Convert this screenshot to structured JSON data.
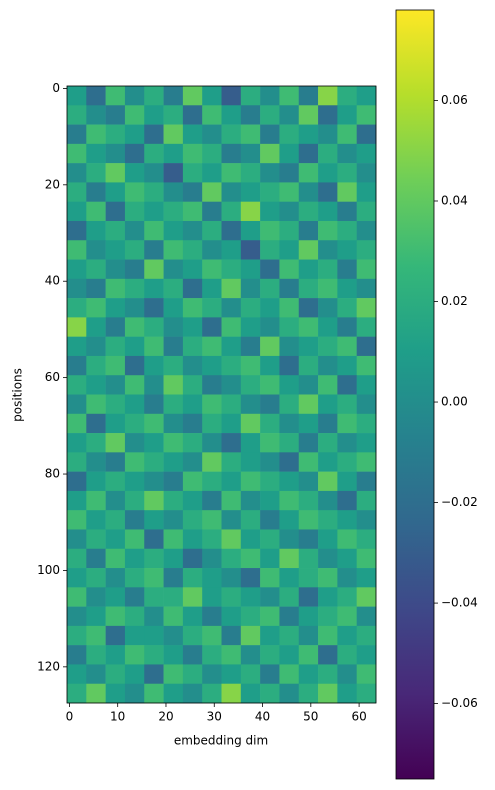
{
  "chart_data": {
    "type": "heatmap",
    "colormap": "viridis",
    "xlabel": "embedding dim",
    "ylabel": "positions",
    "xlim": [
      -0.5,
      63.5
    ],
    "ylim": [
      127.5,
      -0.5
    ],
    "xticks": [
      0,
      10,
      20,
      30,
      40,
      50,
      60
    ],
    "yticks": [
      0,
      20,
      40,
      60,
      80,
      100,
      120
    ],
    "clim": [
      -0.075,
      0.078
    ],
    "cticks": [
      {
        "value": -0.06,
        "label": "−0.06"
      },
      {
        "value": -0.04,
        "label": "−0.04"
      },
      {
        "value": -0.02,
        "label": "−0.02"
      },
      {
        "value": 0,
        "label": "0.00"
      },
      0.02,
      0.04,
      0.06
    ],
    "z": [
      [
        0.01,
        -0.02,
        0.03,
        0.0,
        0.02,
        -0.01,
        0.04,
        0.01,
        -0.03,
        0.02,
        0.0,
        0.03,
        -0.01,
        0.05,
        0.02,
        0.01
      ],
      [
        0.02,
        0.0,
        -0.01,
        0.03,
        0.01,
        0.02,
        -0.02,
        0.03,
        0.01,
        -0.01,
        0.02,
        0.0,
        0.04,
        -0.02,
        0.01,
        0.03
      ],
      [
        -0.01,
        0.03,
        0.02,
        0.01,
        -0.02,
        0.04,
        0.01,
        0.0,
        0.02,
        0.03,
        -0.01,
        0.02,
        0.01,
        0.0,
        0.03,
        -0.02
      ],
      [
        0.03,
        0.01,
        0.0,
        -0.02,
        0.02,
        0.01,
        0.03,
        0.02,
        -0.01,
        0.0,
        0.04,
        0.01,
        -0.02,
        0.02,
        0.0,
        0.01
      ],
      [
        0.0,
        0.02,
        0.04,
        0.01,
        0.0,
        -0.03,
        0.02,
        0.01,
        0.03,
        0.02,
        0.0,
        -0.01,
        0.03,
        0.01,
        0.02,
        0.0
      ],
      [
        0.02,
        -0.01,
        0.01,
        0.03,
        0.02,
        0.0,
        -0.01,
        0.04,
        0.0,
        0.01,
        0.02,
        0.03,
        0.0,
        -0.02,
        0.04,
        0.01
      ],
      [
        0.01,
        0.03,
        -0.02,
        0.02,
        0.01,
        0.02,
        0.03,
        -0.01,
        0.02,
        0.05,
        0.01,
        0.0,
        0.02,
        0.01,
        -0.01,
        0.02
      ],
      [
        -0.02,
        0.01,
        0.02,
        0.0,
        0.03,
        0.01,
        0.0,
        0.02,
        -0.02,
        0.01,
        0.03,
        0.02,
        -0.01,
        0.03,
        0.02,
        0.0
      ],
      [
        0.03,
        0.0,
        0.01,
        0.02,
        -0.01,
        0.03,
        0.02,
        0.0,
        0.01,
        -0.03,
        0.02,
        0.01,
        0.04,
        0.0,
        0.01,
        0.02
      ],
      [
        0.01,
        0.02,
        0.0,
        -0.01,
        0.04,
        0.0,
        0.01,
        0.03,
        0.02,
        0.01,
        -0.02,
        0.03,
        0.01,
        0.02,
        -0.01,
        0.03
      ],
      [
        0.0,
        -0.01,
        0.03,
        0.02,
        0.01,
        0.02,
        -0.02,
        0.01,
        0.04,
        0.0,
        0.02,
        -0.01,
        0.02,
        0.03,
        0.01,
        0.0
      ],
      [
        0.02,
        0.03,
        0.01,
        0.0,
        -0.02,
        0.01,
        0.03,
        0.02,
        0.0,
        0.02,
        0.01,
        0.03,
        -0.02,
        0.0,
        0.02,
        0.04
      ],
      [
        0.05,
        0.01,
        -0.01,
        0.03,
        0.02,
        0.0,
        0.01,
        -0.02,
        0.03,
        0.01,
        0.0,
        0.02,
        0.03,
        0.01,
        -0.01,
        0.02
      ],
      [
        0.01,
        0.0,
        0.02,
        0.01,
        0.03,
        -0.01,
        0.02,
        0.03,
        0.01,
        -0.01,
        0.04,
        0.0,
        0.01,
        0.02,
        0.03,
        -0.02
      ],
      [
        -0.01,
        0.02,
        0.03,
        -0.02,
        0.01,
        0.02,
        0.0,
        0.01,
        0.02,
        0.03,
        0.01,
        -0.02,
        0.02,
        0.0,
        0.01,
        0.03
      ],
      [
        0.02,
        0.01,
        0.0,
        0.03,
        0.0,
        0.04,
        0.02,
        -0.01,
        0.0,
        0.02,
        0.03,
        0.01,
        0.0,
        0.03,
        -0.02,
        0.01
      ],
      [
        0.0,
        0.03,
        0.02,
        0.01,
        -0.01,
        0.02,
        0.01,
        0.03,
        0.02,
        0.0,
        -0.01,
        0.02,
        0.04,
        0.01,
        0.02,
        0.0
      ],
      [
        0.03,
        -0.02,
        0.01,
        0.02,
        0.03,
        0.0,
        -0.01,
        0.02,
        0.01,
        0.04,
        0.02,
        0.0,
        0.01,
        -0.01,
        0.03,
        0.02
      ],
      [
        0.01,
        0.02,
        0.04,
        0.0,
        0.01,
        0.03,
        0.02,
        0.0,
        -0.02,
        0.01,
        0.03,
        0.02,
        -0.01,
        0.02,
        0.0,
        0.01
      ],
      [
        0.02,
        0.0,
        -0.01,
        0.03,
        0.02,
        0.01,
        0.0,
        0.04,
        0.02,
        0.01,
        0.0,
        -0.02,
        0.03,
        0.01,
        0.02,
        0.03
      ],
      [
        -0.02,
        0.01,
        0.02,
        0.01,
        0.0,
        -0.01,
        0.03,
        0.02,
        0.01,
        0.03,
        0.02,
        0.01,
        0.0,
        0.04,
        0.01,
        -0.01
      ],
      [
        0.01,
        0.03,
        0.0,
        0.02,
        0.04,
        0.02,
        0.01,
        -0.01,
        0.03,
        0.0,
        0.01,
        0.03,
        0.02,
        0.0,
        -0.02,
        0.02
      ],
      [
        0.03,
        0.01,
        0.02,
        -0.01,
        0.01,
        0.0,
        0.02,
        0.03,
        0.0,
        0.02,
        -0.01,
        0.01,
        0.03,
        0.02,
        0.01,
        0.0
      ],
      [
        0.0,
        0.02,
        0.01,
        0.03,
        -0.02,
        0.03,
        0.01,
        0.02,
        0.04,
        0.01,
        0.02,
        0.0,
        -0.01,
        0.01,
        0.03,
        0.02
      ],
      [
        0.02,
        -0.01,
        0.03,
        0.01,
        0.02,
        0.01,
        -0.02,
        0.0,
        0.02,
        0.03,
        0.01,
        0.04,
        0.02,
        0.0,
        0.01,
        0.03
      ],
      [
        0.01,
        0.02,
        0.0,
        0.02,
        0.03,
        -0.01,
        0.02,
        0.01,
        0.0,
        -0.02,
        0.03,
        0.01,
        0.02,
        0.03,
        0.0,
        0.01
      ],
      [
        0.03,
        0.0,
        0.01,
        -0.01,
        0.02,
        0.02,
        0.04,
        0.01,
        0.02,
        0.01,
        0.0,
        0.02,
        -0.02,
        0.01,
        0.02,
        0.04
      ],
      [
        0.0,
        0.01,
        0.03,
        0.02,
        0.0,
        0.03,
        0.01,
        -0.01,
        0.01,
        0.02,
        0.03,
        -0.01,
        0.01,
        0.02,
        0.03,
        0.0
      ],
      [
        0.02,
        0.03,
        -0.02,
        0.01,
        0.01,
        0.0,
        0.02,
        0.03,
        -0.01,
        0.04,
        0.01,
        0.02,
        0.0,
        0.03,
        0.01,
        0.02
      ],
      [
        -0.01,
        0.02,
        0.01,
        0.03,
        0.02,
        0.01,
        -0.01,
        0.02,
        0.03,
        0.0,
        0.02,
        0.01,
        0.03,
        -0.02,
        0.02,
        0.01
      ],
      [
        0.01,
        0.0,
        0.02,
        0.01,
        -0.02,
        0.03,
        0.02,
        0.0,
        0.01,
        0.02,
        -0.01,
        0.03,
        0.01,
        0.02,
        0.0,
        0.03
      ],
      [
        0.02,
        0.04,
        0.01,
        0.0,
        0.03,
        0.01,
        0.0,
        0.02,
        0.05,
        0.01,
        0.02,
        0.0,
        0.02,
        0.04,
        0.01,
        0.02
      ]
    ]
  }
}
